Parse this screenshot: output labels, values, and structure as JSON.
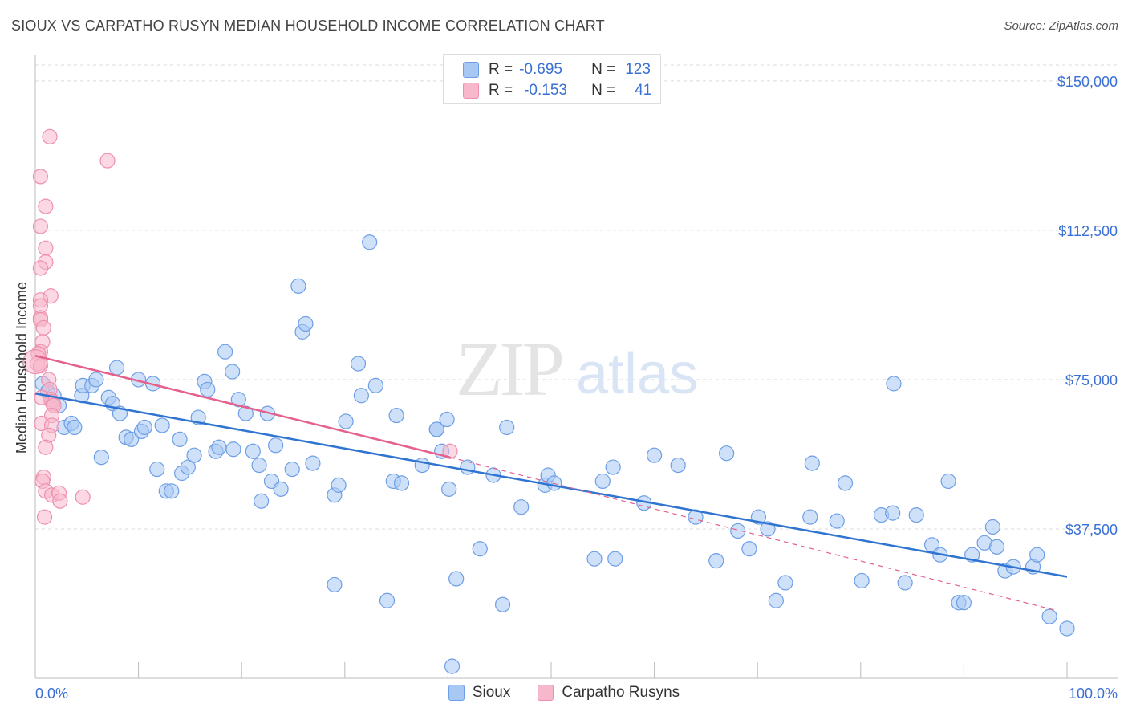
{
  "header": {
    "title": "SIOUX VS CARPATHO RUSYN MEDIAN HOUSEHOLD INCOME CORRELATION CHART",
    "source": "Source: ZipAtlas.com"
  },
  "watermark": {
    "zip": "ZIP",
    "atlas": "atlas"
  },
  "legend_top": [
    {
      "r_label": "R =",
      "r_value": "-0.695",
      "n_label": "N =",
      "n_value": "123",
      "color": "#a8c8f4"
    },
    {
      "r_label": "R =",
      "r_value": "-0.153",
      "n_label": "N =",
      "n_value": "41",
      "color": "#f7b8cc"
    }
  ],
  "legend_bottom": [
    {
      "label": "Sioux",
      "color": "#a8c8f4"
    },
    {
      "label": "Carpatho Rusyns",
      "color": "#f7b8cc"
    }
  ],
  "colors": {
    "sioux_fill": "#a8c8f4",
    "sioux_stroke": "#6d9ee6",
    "sioux_line": "#2f74d0",
    "rusyn_fill": "#f7b8cc",
    "rusyn_stroke": "#ee8fae",
    "rusyn_line": "#e5608c",
    "tick_label": "#3a6fd4",
    "grid": "#dddddd"
  },
  "chart_data": {
    "type": "scatter",
    "title": "SIOUX VS CARPATHO RUSYN MEDIAN HOUSEHOLD INCOME CORRELATION CHART",
    "xlabel": "",
    "ylabel": "Median Household Income",
    "xlim": [
      0,
      100
    ],
    "ylim": [
      0,
      154000
    ],
    "x_tick_labels": [
      "0.0%",
      "100.0%"
    ],
    "y_ticks": [
      37500,
      75000,
      112500,
      150000
    ],
    "y_tick_labels": [
      "$37,500",
      "$75,000",
      "$112,500",
      "$150,000"
    ],
    "grid": true,
    "legend_position": "top-center",
    "series": [
      {
        "name": "Sioux",
        "r": -0.695,
        "n": 123,
        "trend": {
          "x": [
            0,
            100
          ],
          "y": [
            71500,
            25500
          ]
        },
        "points": [
          [
            0.7,
            74000
          ],
          [
            1.2,
            72000
          ],
          [
            1.8,
            71000
          ],
          [
            2.3,
            68500
          ],
          [
            2.8,
            63000
          ],
          [
            3.5,
            64000
          ],
          [
            3.8,
            63000
          ],
          [
            4.5,
            71000
          ],
          [
            4.6,
            73500
          ],
          [
            5.5,
            73500
          ],
          [
            5.9,
            75000
          ],
          [
            6.4,
            55500
          ],
          [
            7.1,
            70500
          ],
          [
            7.5,
            69000
          ],
          [
            7.9,
            78000
          ],
          [
            8.2,
            66500
          ],
          [
            8.8,
            60500
          ],
          [
            9.3,
            60000
          ],
          [
            10.0,
            75000
          ],
          [
            10.3,
            62000
          ],
          [
            10.6,
            63000
          ],
          [
            11.4,
            74000
          ],
          [
            11.8,
            52500
          ],
          [
            12.3,
            63500
          ],
          [
            12.7,
            47000
          ],
          [
            13.2,
            47000
          ],
          [
            14.0,
            60000
          ],
          [
            14.2,
            51500
          ],
          [
            14.8,
            53000
          ],
          [
            15.4,
            56000
          ],
          [
            15.8,
            65500
          ],
          [
            16.4,
            74500
          ],
          [
            16.7,
            72500
          ],
          [
            17.5,
            57000
          ],
          [
            17.8,
            58000
          ],
          [
            18.4,
            82000
          ],
          [
            19.2,
            57500
          ],
          [
            19.1,
            77000
          ],
          [
            19.7,
            70000
          ],
          [
            20.4,
            66500
          ],
          [
            21.1,
            57000
          ],
          [
            21.7,
            53500
          ],
          [
            21.9,
            44500
          ],
          [
            22.5,
            66500
          ],
          [
            22.9,
            49500
          ],
          [
            23.3,
            58500
          ],
          [
            23.8,
            47500
          ],
          [
            24.9,
            52500
          ],
          [
            25.5,
            98500
          ],
          [
            25.9,
            87000
          ],
          [
            26.2,
            89000
          ],
          [
            26.9,
            54000
          ],
          [
            29.0,
            46000
          ],
          [
            29.4,
            48500
          ],
          [
            29.0,
            23500
          ],
          [
            30.1,
            64500
          ],
          [
            31.3,
            79000
          ],
          [
            31.6,
            71000
          ],
          [
            32.4,
            109500
          ],
          [
            33.0,
            73500
          ],
          [
            34.1,
            19500
          ],
          [
            34.7,
            49500
          ],
          [
            35.0,
            66000
          ],
          [
            35.5,
            49000
          ],
          [
            37.5,
            53500
          ],
          [
            38.9,
            62500
          ],
          [
            38.9,
            62500
          ],
          [
            39.4,
            57000
          ],
          [
            39.9,
            65000
          ],
          [
            40.1,
            47500
          ],
          [
            40.4,
            3000
          ],
          [
            40.8,
            25000
          ],
          [
            41.9,
            53000
          ],
          [
            43.1,
            32500
          ],
          [
            44.4,
            51000
          ],
          [
            45.3,
            18500
          ],
          [
            45.7,
            63000
          ],
          [
            47.1,
            43000
          ],
          [
            49.4,
            48500
          ],
          [
            49.7,
            51000
          ],
          [
            50.3,
            49000
          ],
          [
            54.2,
            30000
          ],
          [
            55.0,
            49500
          ],
          [
            56.0,
            53000
          ],
          [
            56.2,
            30000
          ],
          [
            59.0,
            44000
          ],
          [
            60.0,
            56000
          ],
          [
            62.3,
            53500
          ],
          [
            64.0,
            40500
          ],
          [
            66.0,
            29500
          ],
          [
            67.0,
            56500
          ],
          [
            68.1,
            37000
          ],
          [
            69.2,
            32500
          ],
          [
            70.1,
            40500
          ],
          [
            71.0,
            37500
          ],
          [
            71.8,
            19500
          ],
          [
            72.7,
            24000
          ],
          [
            75.1,
            40500
          ],
          [
            75.3,
            54000
          ],
          [
            77.7,
            39500
          ],
          [
            78.5,
            49000
          ],
          [
            80.1,
            24500
          ],
          [
            82.0,
            41000
          ],
          [
            83.1,
            41500
          ],
          [
            83.2,
            74000
          ],
          [
            84.3,
            24000
          ],
          [
            85.4,
            41000
          ],
          [
            86.9,
            33500
          ],
          [
            87.7,
            31000
          ],
          [
            88.5,
            49500
          ],
          [
            89.5,
            19000
          ],
          [
            90.0,
            19000
          ],
          [
            90.8,
            31000
          ],
          [
            92.0,
            34000
          ],
          [
            92.8,
            38000
          ],
          [
            93.2,
            33000
          ],
          [
            94.0,
            27000
          ],
          [
            94.8,
            28000
          ],
          [
            96.7,
            28000
          ],
          [
            97.1,
            31000
          ],
          [
            98.3,
            15500
          ],
          [
            100.0,
            12500
          ]
        ]
      },
      {
        "name": "Carpatho Rusyns",
        "r": -0.153,
        "n": 41,
        "trend": {
          "x": [
            0,
            40.2
          ],
          "y": [
            81000,
            55500
          ]
        },
        "trend_extension": {
          "x": [
            40.2,
            99
          ],
          "y": [
            55500,
            17000
          ]
        },
        "points": [
          [
            1.4,
            136000
          ],
          [
            7.0,
            130000
          ],
          [
            0.5,
            126000
          ],
          [
            1.0,
            118500
          ],
          [
            0.5,
            113500
          ],
          [
            1.0,
            108000
          ],
          [
            1.0,
            104500
          ],
          [
            0.5,
            103000
          ],
          [
            1.5,
            96000
          ],
          [
            0.5,
            95000
          ],
          [
            0.5,
            93500
          ],
          [
            0.5,
            90500
          ],
          [
            0.5,
            90000
          ],
          [
            0.8,
            88000
          ],
          [
            0.7,
            84500
          ],
          [
            0.5,
            82000
          ],
          [
            0.3,
            81500
          ],
          [
            0.2,
            79000
          ],
          [
            0.5,
            78500
          ],
          [
            1.3,
            75000
          ],
          [
            1.4,
            72500
          ],
          [
            1.5,
            70000
          ],
          [
            1.6,
            69500
          ],
          [
            1.7,
            69000
          ],
          [
            1.8,
            68500
          ],
          [
            0.6,
            70500
          ],
          [
            1.6,
            66000
          ],
          [
            0.6,
            64000
          ],
          [
            1.6,
            63500
          ],
          [
            1.3,
            61000
          ],
          [
            1.0,
            58000
          ],
          [
            0.8,
            50500
          ],
          [
            0.7,
            49500
          ],
          [
            1.0,
            47000
          ],
          [
            1.6,
            46000
          ],
          [
            2.3,
            46500
          ],
          [
            2.4,
            44500
          ],
          [
            4.6,
            45500
          ],
          [
            0.9,
            40500
          ],
          [
            40.2,
            57000
          ],
          [
            0.0,
            79500
          ]
        ]
      }
    ]
  }
}
